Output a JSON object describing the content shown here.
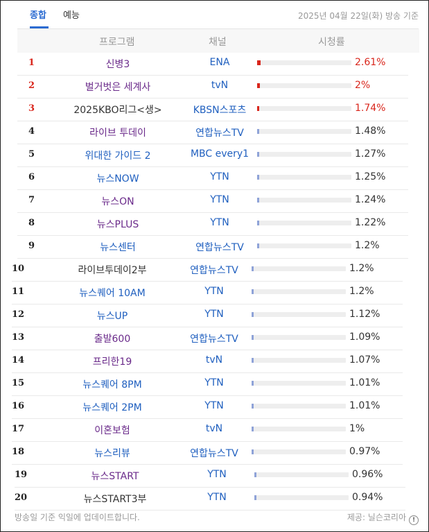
{
  "tabs": [
    {
      "label": "종합",
      "active": true
    },
    {
      "label": "예능",
      "active": false
    }
  ],
  "date_label": "2025년 04월 22일(화) 방송 기준",
  "columns": {
    "program": "프로그램",
    "channel": "채널",
    "rating": "시청률"
  },
  "colors": {
    "program_purple": "#6a2a8a",
    "program_blue": "#1f5fbf",
    "program_dark": "#333333",
    "hot": "#d9261c",
    "bar_fill": "#8fa3d8"
  },
  "rows": [
    {
      "rank": "1",
      "program": "신병3",
      "channel": "ENA",
      "rating": "2.61%",
      "rating_value": 2.61,
      "hot": true,
      "program_color": "purple"
    },
    {
      "rank": "2",
      "program": "벌거벗은 세계사",
      "channel": "tvN",
      "rating": "2%",
      "rating_value": 2.0,
      "hot": true,
      "program_color": "purple"
    },
    {
      "rank": "3",
      "program": "2025KBO리그<생>",
      "channel": "KBSN스포츠",
      "rating": "1.74%",
      "rating_value": 1.74,
      "hot": true,
      "program_color": "dark"
    },
    {
      "rank": "4",
      "program": "라이브 투데이",
      "channel": "연합뉴스TV",
      "rating": "1.48%",
      "rating_value": 1.48,
      "hot": false,
      "program_color": "purple"
    },
    {
      "rank": "5",
      "program": "위대한 가이드 2",
      "channel": "MBC every1",
      "rating": "1.27%",
      "rating_value": 1.27,
      "hot": false,
      "program_color": "blue"
    },
    {
      "rank": "6",
      "program": "뉴스NOW",
      "channel": "YTN",
      "rating": "1.25%",
      "rating_value": 1.25,
      "hot": false,
      "program_color": "blue"
    },
    {
      "rank": "7",
      "program": "뉴스ON",
      "channel": "YTN",
      "rating": "1.24%",
      "rating_value": 1.24,
      "hot": false,
      "program_color": "purple"
    },
    {
      "rank": "8",
      "program": "뉴스PLUS",
      "channel": "YTN",
      "rating": "1.22%",
      "rating_value": 1.22,
      "hot": false,
      "program_color": "purple"
    },
    {
      "rank": "9",
      "program": "뉴스센터",
      "channel": "연합뉴스TV",
      "rating": "1.2%",
      "rating_value": 1.2,
      "hot": false,
      "program_color": "blue"
    },
    {
      "rank": "10",
      "program": "라이브투데이2부",
      "channel": "연합뉴스TV",
      "rating": "1.2%",
      "rating_value": 1.2,
      "hot": false,
      "program_color": "dark"
    },
    {
      "rank": "11",
      "program": "뉴스퀘어 10AM",
      "channel": "YTN",
      "rating": "1.2%",
      "rating_value": 1.2,
      "hot": false,
      "program_color": "blue"
    },
    {
      "rank": "12",
      "program": "뉴스UP",
      "channel": "YTN",
      "rating": "1.12%",
      "rating_value": 1.12,
      "hot": false,
      "program_color": "blue"
    },
    {
      "rank": "13",
      "program": "출발600",
      "channel": "연합뉴스TV",
      "rating": "1.09%",
      "rating_value": 1.09,
      "hot": false,
      "program_color": "purple"
    },
    {
      "rank": "14",
      "program": "프리한19",
      "channel": "tvN",
      "rating": "1.07%",
      "rating_value": 1.07,
      "hot": false,
      "program_color": "purple"
    },
    {
      "rank": "15",
      "program": "뉴스퀘어 8PM",
      "channel": "YTN",
      "rating": "1.01%",
      "rating_value": 1.01,
      "hot": false,
      "program_color": "blue"
    },
    {
      "rank": "16",
      "program": "뉴스퀘어 2PM",
      "channel": "YTN",
      "rating": "1.01%",
      "rating_value": 1.01,
      "hot": false,
      "program_color": "blue"
    },
    {
      "rank": "17",
      "program": "이혼보험",
      "channel": "tvN",
      "rating": "1%",
      "rating_value": 1.0,
      "hot": false,
      "program_color": "purple"
    },
    {
      "rank": "18",
      "program": "뉴스리뷰",
      "channel": "연합뉴스TV",
      "rating": "0.97%",
      "rating_value": 0.97,
      "hot": false,
      "program_color": "blue"
    },
    {
      "rank": "19",
      "program": "뉴스START",
      "channel": "YTN",
      "rating": "0.96%",
      "rating_value": 0.96,
      "hot": false,
      "program_color": "purple"
    },
    {
      "rank": "20",
      "program": "뉴스START3부",
      "channel": "YTN",
      "rating": "0.94%",
      "rating_value": 0.94,
      "hot": false,
      "program_color": "dark"
    }
  ],
  "footer": {
    "note": "방송일 기준 익일에 업데이트합니다.",
    "source": "제공: 닐슨코리아",
    "info_icon": "info-icon"
  }
}
